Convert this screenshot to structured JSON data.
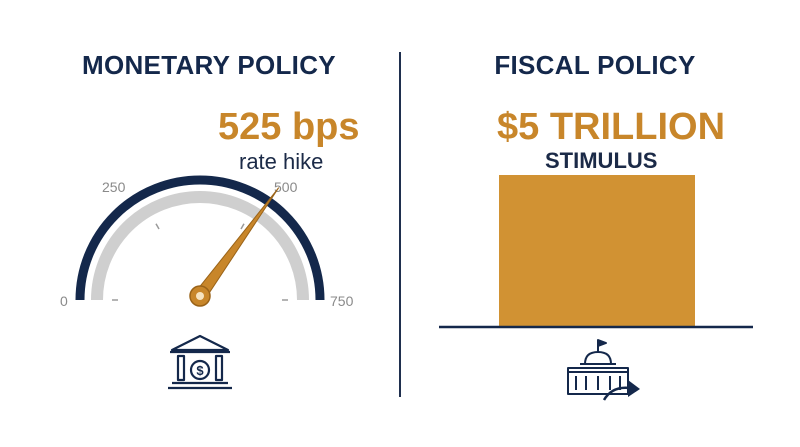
{
  "monetary": {
    "title": "MONETARY POLICY",
    "headline": "525 bps",
    "subline": "rate hike",
    "gauge": {
      "min_label": "0",
      "label_250": "250",
      "label_500": "500",
      "max_label": "750",
      "min": 0,
      "max": 750,
      "value": 525
    },
    "icon": "bank-icon"
  },
  "fiscal": {
    "title": "FISCAL POLICY",
    "headline": "$5 TRILLION",
    "subline": "STIMULUS",
    "icon": "capitol-arrow-icon"
  },
  "colors": {
    "navy": "#14284b",
    "orange": "#c8862a",
    "bar_fill": "#d19233",
    "track_gray": "#cfcfcf"
  }
}
